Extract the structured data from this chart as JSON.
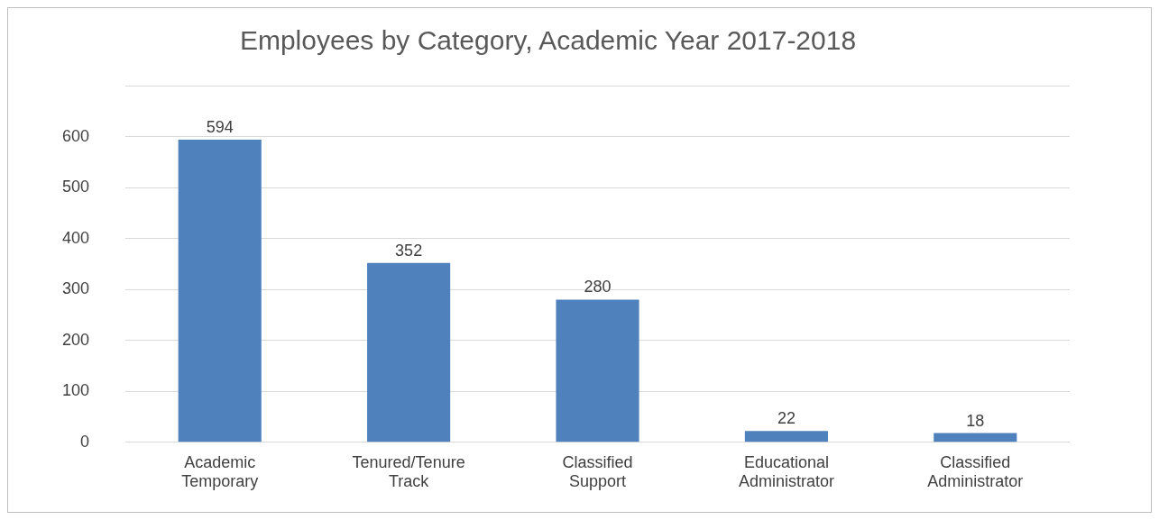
{
  "chart_data": {
    "type": "bar",
    "title": "Employees by Category, Academic Year 2017-2018",
    "categories": [
      "Academic Temporary",
      "Tenured/Tenure Track",
      "Classified Support",
      "Educational Administrator",
      "Classified Administrator"
    ],
    "values": [
      594,
      352,
      280,
      22,
      18
    ],
    "color": "#4f81bd",
    "ylim": [
      0,
      700
    ],
    "yticks": [
      0,
      100,
      200,
      300,
      400,
      500,
      600,
      {
        "value": 700,
        "label": null
      }
    ],
    "grid": "y",
    "data_labels": true
  }
}
